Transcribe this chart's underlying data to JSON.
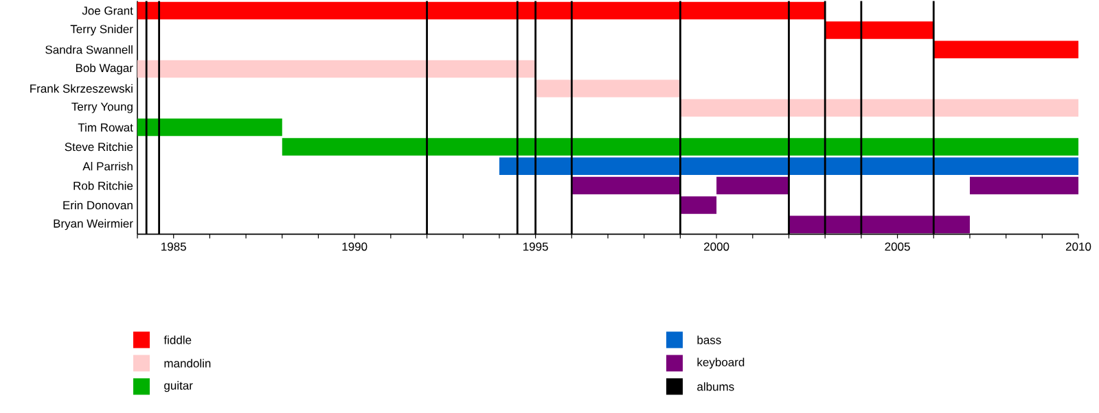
{
  "chart_data": {
    "type": "bar",
    "orientation": "horizontal",
    "legend": "bottom",
    "categories": [
      "Joe Grant",
      "Terry Snider",
      "Sandra Swannell",
      "Bob Wagar",
      "Frank Skrzeszewski",
      "Terry Young",
      "Tim Rowat",
      "Steve Ritchie",
      "Al Parrish",
      "Rob Ritchie",
      "Erin Donovan",
      "Bryan Weirmier"
    ],
    "series": [
      {
        "name": "fiddle",
        "color": "#ff0000",
        "base": [
          1984,
          2003,
          2006,
          null,
          null,
          null,
          null,
          null,
          null,
          null,
          null,
          null
        ],
        "values": [
          19,
          3,
          4,
          null,
          null,
          null,
          null,
          null,
          null,
          null,
          null,
          null
        ]
      },
      {
        "name": "mandolin",
        "color": "#ffcccc",
        "base": [
          null,
          null,
          null,
          1984,
          1995,
          1999,
          null,
          null,
          null,
          null,
          null,
          null
        ],
        "values": [
          null,
          null,
          null,
          11,
          4,
          11,
          null,
          null,
          null,
          null,
          null,
          null
        ]
      },
      {
        "name": "guitar",
        "color": "#00b000",
        "base": [
          null,
          null,
          null,
          null,
          null,
          null,
          1984,
          1988,
          null,
          null,
          null,
          null
        ],
        "values": [
          null,
          null,
          null,
          null,
          null,
          null,
          4,
          22,
          null,
          null,
          null,
          null
        ]
      },
      {
        "name": "bass",
        "color": "#0066cc",
        "base": [
          null,
          null,
          null,
          null,
          null,
          null,
          null,
          null,
          1994,
          null,
          null,
          null
        ],
        "values": [
          null,
          null,
          null,
          null,
          null,
          null,
          null,
          null,
          16,
          null,
          null,
          null
        ]
      },
      {
        "name": "keyboard",
        "color": "#7a007a",
        "base": [
          null,
          null,
          null,
          null,
          null,
          null,
          null,
          null,
          null,
          1996,
          1999,
          2002
        ],
        "values": [
          null,
          null,
          null,
          null,
          null,
          null,
          null,
          null,
          null,
          3,
          1,
          5
        ]
      },
      {
        "color": "#7a007a",
        "base": [
          null,
          null,
          null,
          null,
          null,
          null,
          null,
          null,
          null,
          2000,
          null,
          null
        ],
        "values": [
          null,
          null,
          null,
          null,
          null,
          null,
          null,
          null,
          null,
          2,
          null,
          null
        ]
      },
      {
        "color": "#7a007a",
        "base": [
          null,
          null,
          null,
          null,
          null,
          null,
          null,
          null,
          null,
          2007,
          null,
          null
        ],
        "values": [
          null,
          null,
          null,
          null,
          null,
          null,
          null,
          null,
          null,
          3,
          null,
          null
        ]
      }
    ],
    "xlim": [
      1984,
      2010
    ],
    "xticks": [
      {
        "value": 1984,
        "label": null
      },
      1985,
      {
        "value": 1986,
        "label": null
      },
      {
        "value": 1987,
        "label": null
      },
      {
        "value": 1988,
        "label": null
      },
      {
        "value": 1989,
        "label": null
      },
      1990,
      {
        "value": 1991,
        "label": null
      },
      {
        "value": 1992,
        "label": null
      },
      {
        "value": 1993,
        "label": null
      },
      {
        "value": 1994,
        "label": null
      },
      1995,
      {
        "value": 1996,
        "label": null
      },
      {
        "value": 1997,
        "label": null
      },
      {
        "value": 1998,
        "label": null
      },
      {
        "value": 1999,
        "label": null
      },
      2000,
      {
        "value": 2001,
        "label": null
      },
      {
        "value": 2002,
        "label": null
      },
      {
        "value": 2003,
        "label": null
      },
      {
        "value": 2004,
        "label": null
      },
      2005,
      {
        "value": 2006,
        "label": null
      },
      {
        "value": 2007,
        "label": null
      },
      {
        "value": 2008,
        "label": null
      },
      {
        "value": 2009,
        "label": null
      },
      2010
    ],
    "ref_lines": [
      {
        "axis": "x",
        "value": 1984.25,
        "color": "#000000",
        "label": "albums"
      },
      {
        "axis": "x",
        "value": 1984.6,
        "color": "#000000"
      },
      {
        "axis": "x",
        "value": 1992,
        "color": "#000000"
      },
      {
        "axis": "x",
        "value": 1994.5,
        "color": "#000000"
      },
      {
        "axis": "x",
        "value": 1995,
        "color": "#000000"
      },
      {
        "axis": "x",
        "value": 1996,
        "color": "#000000"
      },
      {
        "axis": "x",
        "value": 1999,
        "color": "#000000"
      },
      {
        "axis": "x",
        "value": 2002,
        "color": "#000000"
      },
      {
        "axis": "x",
        "value": 2003,
        "color": "#000000"
      },
      {
        "axis": "x",
        "value": 2004,
        "color": "#000000"
      },
      {
        "axis": "x",
        "value": 2006,
        "color": "#000000"
      }
    ]
  }
}
